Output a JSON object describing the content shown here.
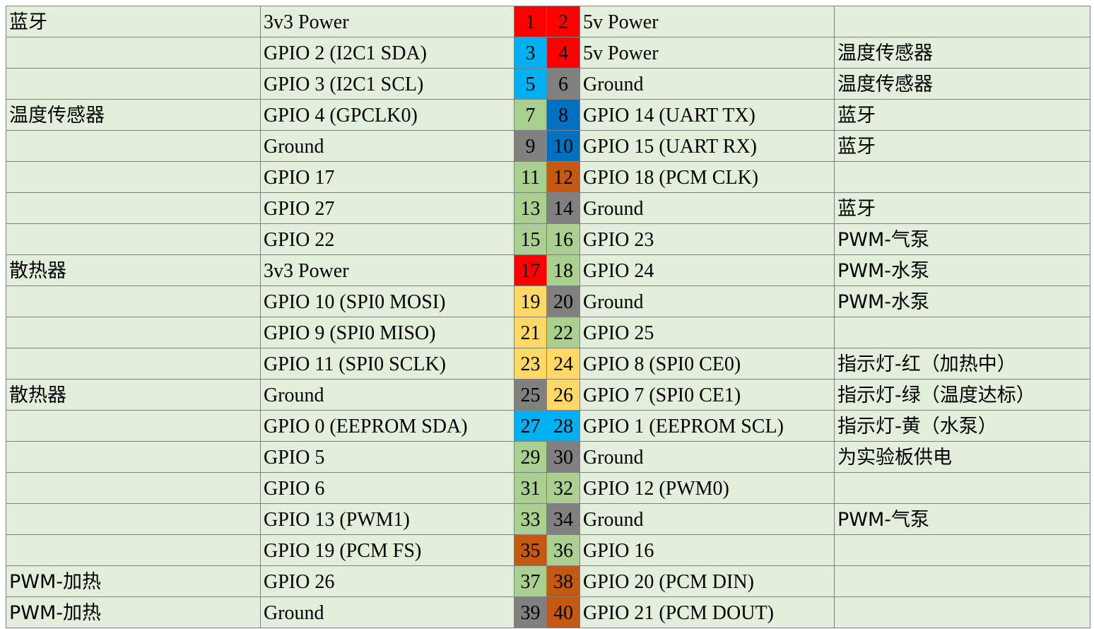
{
  "pin_colors": {
    "red": "#ff0000",
    "blue": "#00b0f0",
    "darkblue": "#0070c0",
    "grey": "#808080",
    "green": "#a9d08e",
    "orange": "#c65911",
    "yellow": "#ffd966"
  },
  "rows": [
    {
      "left_note": "蓝牙",
      "left_func": "3v3 Power",
      "left_pin": "1",
      "left_color": "red",
      "right_pin": "2",
      "right_color": "red",
      "right_func": "5v Power",
      "right_note": ""
    },
    {
      "left_note": "",
      "left_func": "GPIO 2 (I2C1 SDA)",
      "left_pin": "3",
      "left_color": "blue",
      "right_pin": "4",
      "right_color": "red",
      "right_func": "5v Power",
      "right_note": "温度传感器"
    },
    {
      "left_note": "",
      "left_func": "GPIO 3 (I2C1 SCL)",
      "left_pin": "5",
      "left_color": "blue",
      "right_pin": "6",
      "right_color": "grey",
      "right_func": "Ground",
      "right_note": "温度传感器"
    },
    {
      "left_note": "温度传感器",
      "left_func": "GPIO 4 (GPCLK0)",
      "left_pin": "7",
      "left_color": "green",
      "right_pin": "8",
      "right_color": "darkblue",
      "right_func": "GPIO 14 (UART TX)",
      "right_note": "蓝牙"
    },
    {
      "left_note": "",
      "left_func": "Ground",
      "left_pin": "9",
      "left_color": "grey",
      "right_pin": "10",
      "right_color": "darkblue",
      "right_func": "GPIO 15 (UART RX)",
      "right_note": "蓝牙"
    },
    {
      "left_note": "",
      "left_func": "GPIO 17",
      "left_pin": "11",
      "left_color": "green",
      "right_pin": "12",
      "right_color": "orange",
      "right_func": "GPIO 18 (PCM CLK)",
      "right_note": ""
    },
    {
      "left_note": "",
      "left_func": "GPIO 27",
      "left_pin": "13",
      "left_color": "green",
      "right_pin": "14",
      "right_color": "grey",
      "right_func": "Ground",
      "right_note": "蓝牙"
    },
    {
      "left_note": "",
      "left_func": "GPIO 22",
      "left_pin": "15",
      "left_color": "green",
      "right_pin": "16",
      "right_color": "green",
      "right_func": "GPIO 23",
      "right_note": "PWM-气泵"
    },
    {
      "left_note": "散热器",
      "left_func": "3v3 Power",
      "left_pin": "17",
      "left_color": "red",
      "right_pin": "18",
      "right_color": "green",
      "right_func": "GPIO 24",
      "right_note": "PWM-水泵"
    },
    {
      "left_note": "",
      "left_func": "GPIO 10 (SPI0 MOSI)",
      "left_pin": "19",
      "left_color": "yellow",
      "right_pin": "20",
      "right_color": "grey",
      "right_func": "Ground",
      "right_note": "PWM-水泵"
    },
    {
      "left_note": "",
      "left_func": "GPIO 9 (SPI0 MISO)",
      "left_pin": "21",
      "left_color": "yellow",
      "right_pin": "22",
      "right_color": "green",
      "right_func": "GPIO 25",
      "right_note": ""
    },
    {
      "left_note": "",
      "left_func": "GPIO 11 (SPI0 SCLK)",
      "left_pin": "23",
      "left_color": "yellow",
      "right_pin": "24",
      "right_color": "yellow",
      "right_func": "GPIO 8 (SPI0 CE0)",
      "right_note": "指示灯-红（加热中）"
    },
    {
      "left_note": "散热器",
      "left_func": "Ground",
      "left_pin": "25",
      "left_color": "grey",
      "right_pin": "26",
      "right_color": "yellow",
      "right_func": "GPIO 7 (SPI0 CE1)",
      "right_note": "指示灯-绿（温度达标）"
    },
    {
      "left_note": "",
      "left_func": "GPIO 0 (EEPROM SDA)",
      "left_pin": "27",
      "left_color": "blue",
      "right_pin": "28",
      "right_color": "blue",
      "right_func": "GPIO 1 (EEPROM SCL)",
      "right_note": "指示灯-黄（水泵）"
    },
    {
      "left_note": "",
      "left_func": "GPIO 5",
      "left_pin": "29",
      "left_color": "green",
      "right_pin": "30",
      "right_color": "grey",
      "right_func": "Ground",
      "right_note": "为实验板供电"
    },
    {
      "left_note": "",
      "left_func": "GPIO 6",
      "left_pin": "31",
      "left_color": "green",
      "right_pin": "32",
      "right_color": "green",
      "right_func": "GPIO 12 (PWM0)",
      "right_note": ""
    },
    {
      "left_note": "",
      "left_func": "GPIO 13 (PWM1)",
      "left_pin": "33",
      "left_color": "green",
      "right_pin": "34",
      "right_color": "grey",
      "right_func": "Ground",
      "right_note": "PWM-气泵"
    },
    {
      "left_note": "",
      "left_func": "GPIO 19 (PCM FS)",
      "left_pin": "35",
      "left_color": "orange",
      "right_pin": "36",
      "right_color": "green",
      "right_func": "GPIO 16",
      "right_note": ""
    },
    {
      "left_note": "PWM-加热",
      "left_func": "GPIO 26",
      "left_pin": "37",
      "left_color": "green",
      "right_pin": "38",
      "right_color": "orange",
      "right_func": "GPIO 20 (PCM DIN)",
      "right_note": ""
    },
    {
      "left_note": "PWM-加热",
      "left_func": "Ground",
      "left_pin": "39",
      "left_color": "grey",
      "right_pin": "40",
      "right_color": "orange",
      "right_func": "GPIO 21 (PCM DOUT)",
      "right_note": ""
    }
  ]
}
